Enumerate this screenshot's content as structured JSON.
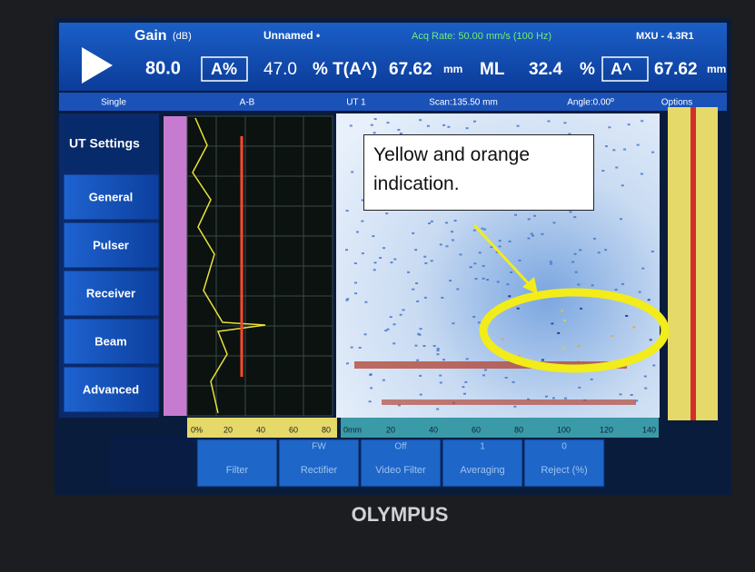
{
  "header": {
    "gain_label": "Gain",
    "gain_unit": "(dB)",
    "file_name": "Unnamed •",
    "acq_rate": "Acq Rate: 50.00 mm/s (100 Hz)",
    "version": "MXU - 4.3R1",
    "gain_value": "80.0",
    "reading_1_gate": "A%",
    "reading_1_value": "47.0",
    "reading_2_label": "% T(A^)",
    "reading_2_value": "67.62",
    "reading_2_unit": "mm",
    "reading_3_gate": "ML",
    "reading_3_value": "32.4",
    "reading_3_unit": "%",
    "reading_4_gate": "A^",
    "reading_4_value": "67.62",
    "reading_4_unit": "mm"
  },
  "toolbar": [
    "Single",
    "A-B",
    "UT 1",
    "Scan:135.50 mm",
    "Angle:0.00º",
    "Options"
  ],
  "menu": {
    "title": "UT Settings",
    "items": [
      "General",
      "Pulser",
      "Receiver",
      "Beam",
      "Advanced"
    ]
  },
  "annotation": "Yellow and orange indication.",
  "ascan_axis": [
    "0%",
    "20",
    "40",
    "60",
    "80"
  ],
  "cscan_axis": [
    "0mm",
    "20",
    "40",
    "60",
    "80",
    "100",
    "120",
    "140"
  ],
  "parameters": [
    {
      "label": "Filter"
    },
    {
      "label": "Rectifier",
      "value": "FW"
    },
    {
      "label": "Video Filter",
      "value": "Off"
    },
    {
      "label": "Averaging",
      "value": "1"
    },
    {
      "label": "Reject (%)",
      "value": "0"
    }
  ],
  "brand": "OLYMPUS"
}
